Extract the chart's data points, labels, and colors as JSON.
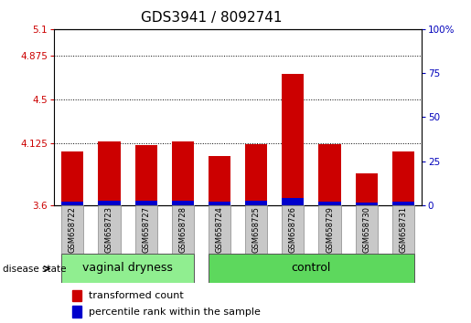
{
  "title": "GDS3941 / 8092741",
  "samples": [
    "GSM658722",
    "GSM658723",
    "GSM658727",
    "GSM658728",
    "GSM658724",
    "GSM658725",
    "GSM658726",
    "GSM658729",
    "GSM658730",
    "GSM658731"
  ],
  "groups": [
    "vaginal dryness",
    "vaginal dryness",
    "vaginal dryness",
    "vaginal dryness",
    "control",
    "control",
    "control",
    "control",
    "control",
    "control"
  ],
  "red_values": [
    4.06,
    4.14,
    4.11,
    4.14,
    4.02,
    4.12,
    4.72,
    4.12,
    3.87,
    4.06
  ],
  "blue_values": [
    3.63,
    3.64,
    3.64,
    3.64,
    3.63,
    3.64,
    3.66,
    3.63,
    3.62,
    3.63
  ],
  "ymin": 3.6,
  "ymax": 5.1,
  "yticks_left": [
    3.6,
    4.125,
    4.5,
    4.875,
    5.1
  ],
  "yticks_right": [
    0,
    25,
    50,
    75,
    100
  ],
  "bar_width": 0.6,
  "red_color": "#CC0000",
  "blue_color": "#0000CC",
  "plot_bg_color": "#ffffff",
  "label_color_left": "#CC0000",
  "label_color_right": "#0000BB",
  "vaginal_color": "#90EE90",
  "control_color": "#5DD85D",
  "gray_color": "#C8C8C8",
  "title_fontsize": 11,
  "tick_fontsize": 7.5,
  "sample_fontsize": 6.0,
  "group_fontsize": 9,
  "legend_fontsize": 8
}
